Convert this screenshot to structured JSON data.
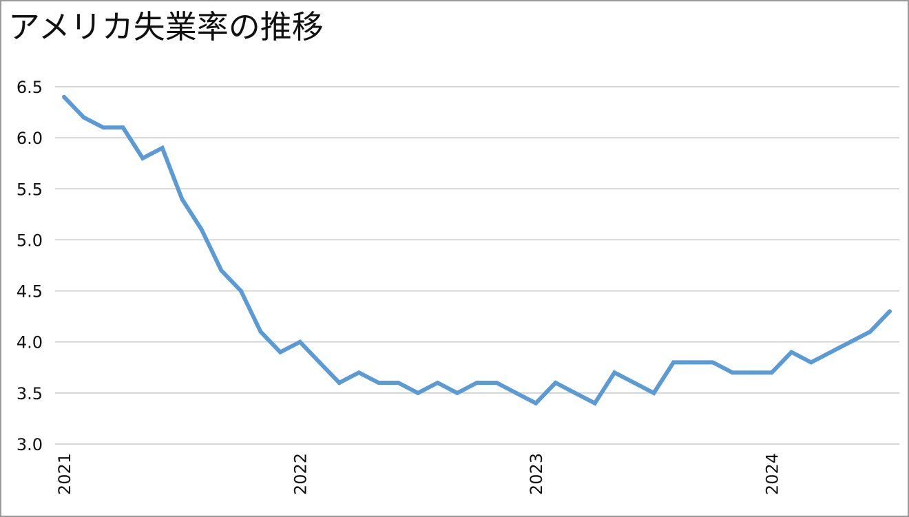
{
  "chart_data": {
    "type": "line",
    "title": "アメリカ失業率の推移",
    "xlabel": "",
    "ylabel": "",
    "x_tick_labels": [
      "2021",
      "2022",
      "2023",
      "2024"
    ],
    "y_tick_labels": [
      "6.5",
      "6.0",
      "5.5",
      "5.0",
      "4.5",
      "4.0",
      "3.5",
      "3.0"
    ],
    "ylim": [
      3.0,
      6.5
    ],
    "grid": true,
    "legend": "none",
    "series": [
      {
        "color": "#5b9bd5",
        "x": [
          "2021-01",
          "2021-02",
          "2021-03",
          "2021-04",
          "2021-05",
          "2021-06",
          "2021-07",
          "2021-08",
          "2021-09",
          "2021-10",
          "2021-11",
          "2021-12",
          "2022-01",
          "2022-02",
          "2022-03",
          "2022-04",
          "2022-05",
          "2022-06",
          "2022-07",
          "2022-08",
          "2022-09",
          "2022-10",
          "2022-11",
          "2022-12",
          "2023-01",
          "2023-02",
          "2023-03",
          "2023-04",
          "2023-05",
          "2023-06",
          "2023-07",
          "2023-08",
          "2023-09",
          "2023-10",
          "2023-11",
          "2023-12",
          "2024-01",
          "2024-02",
          "2024-03",
          "2024-04",
          "2024-05",
          "2024-06",
          "2024-07"
        ],
        "values": [
          6.4,
          6.2,
          6.1,
          6.1,
          5.8,
          5.9,
          5.4,
          5.1,
          4.7,
          4.5,
          4.1,
          3.9,
          4.0,
          3.8,
          3.6,
          3.7,
          3.6,
          3.6,
          3.5,
          3.6,
          3.5,
          3.6,
          3.6,
          3.5,
          3.4,
          3.6,
          3.5,
          3.4,
          3.7,
          3.6,
          3.5,
          3.8,
          3.8,
          3.8,
          3.7,
          3.7,
          3.7,
          3.9,
          3.8,
          3.9,
          4.0,
          4.1,
          4.3
        ]
      }
    ]
  }
}
